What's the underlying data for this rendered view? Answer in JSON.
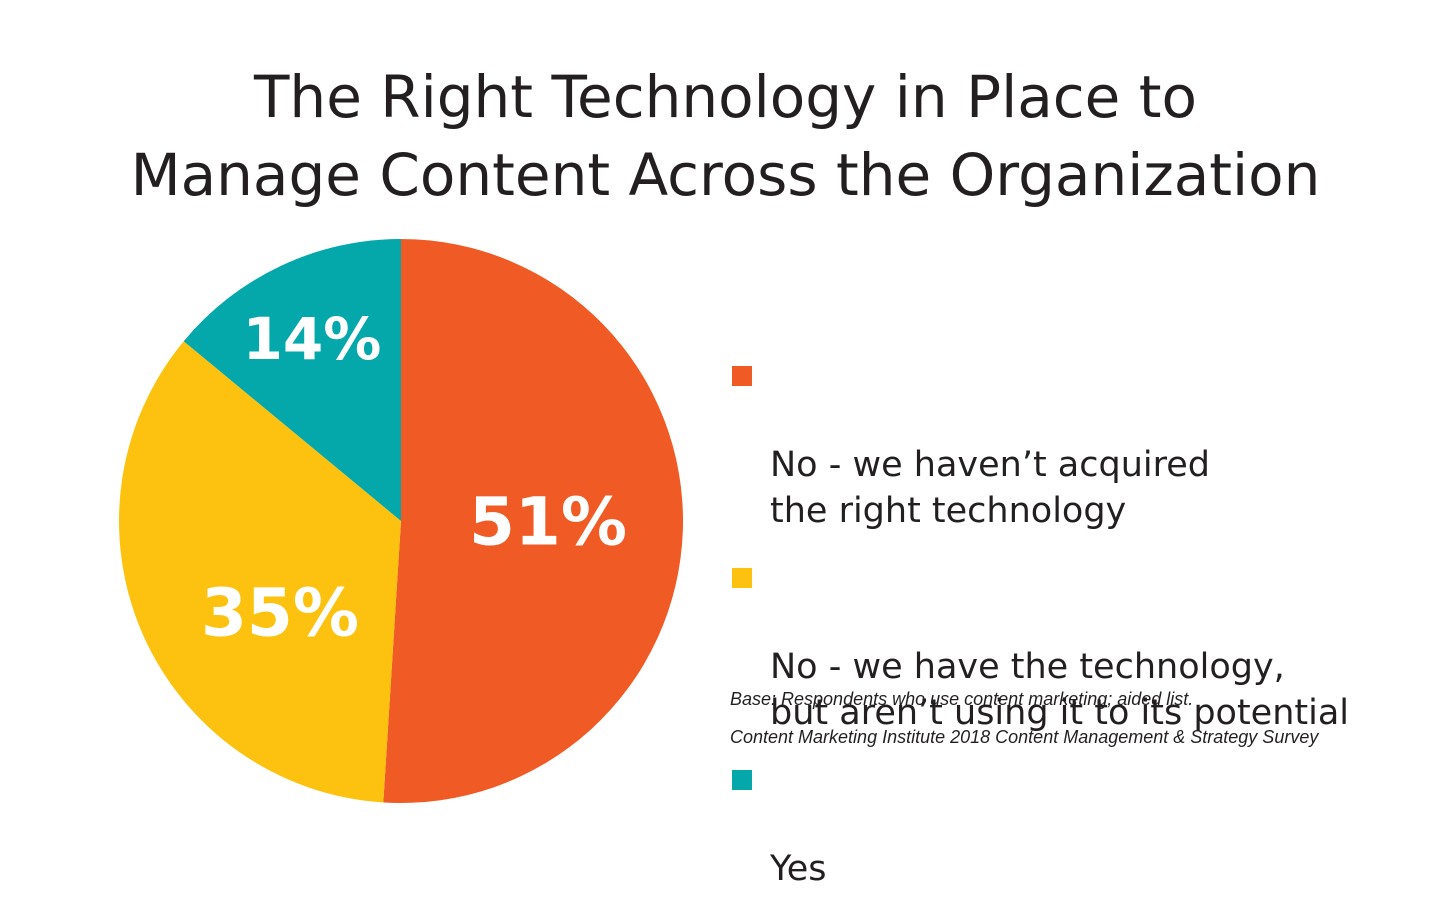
{
  "title_lines": [
    "The Right Technology in Place to",
    "Manage Content Across the Organization"
  ],
  "chart_data": {
    "type": "pie",
    "title": "The Right Technology in Place to Manage Content Across the Organization",
    "slices": [
      {
        "name": "No - we haven’t acquired the right technology",
        "value": 51,
        "label": "51%",
        "color": "#f05a24"
      },
      {
        "name": "No - we have the technology, but aren’t using it to its potential",
        "value": 35,
        "label": "35%",
        "color": "#fdc20f"
      },
      {
        "name": "Yes",
        "value": 14,
        "label": "14%",
        "color": "#05a8aa"
      }
    ],
    "legend_placement": "right"
  },
  "legend": [
    {
      "text": "No - we haven’t acquired\nthe right technology",
      "color": "#f05a24"
    },
    {
      "text": "No - we have the technology,\nbut aren’t using it to its potential",
      "color": "#fdc20f"
    },
    {
      "text": "Yes",
      "color": "#05a8aa"
    }
  ],
  "notes": {
    "base": "Base: Respondents who use content marketing; aided list.",
    "source": "Content Marketing Institute 2018 Content Management & Strategy Survey"
  }
}
